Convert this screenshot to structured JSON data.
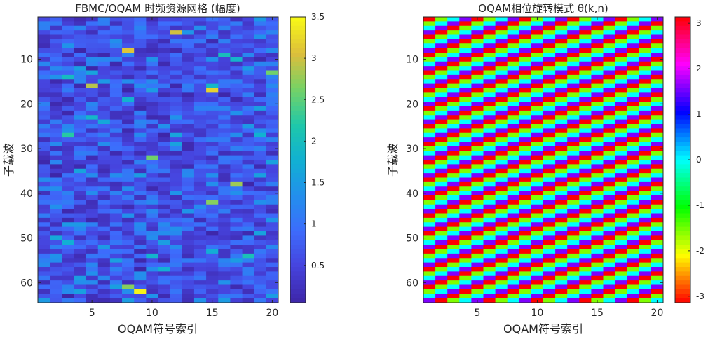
{
  "chart_data": [
    {
      "type": "heatmap",
      "title": "FBMC/OQAM 时频资源网格 (幅度)",
      "xlabel": "OQAM符号索引",
      "ylabel": "子载波",
      "x": {
        "count": 20,
        "range": [
          0.5,
          20.5
        ],
        "ticks": [
          5,
          10,
          15,
          20
        ]
      },
      "y": {
        "count": 64,
        "range": [
          0.5,
          64.5
        ],
        "ticks": [
          10,
          20,
          30,
          40,
          50,
          60
        ],
        "direction": "reverse"
      },
      "values_source": "random amplitudes (no numeric cell labels shown)",
      "colormap": "parula",
      "colorbar": {
        "range": [
          0.05,
          3.5
        ],
        "ticks": [
          "0.5",
          "1",
          "1.5",
          "2",
          "2.5",
          "3",
          "3.5"
        ],
        "tick_values": [
          0.5,
          1,
          1.5,
          2,
          2.5,
          3,
          3.5
        ]
      }
    },
    {
      "type": "heatmap",
      "title": "OQAM相位旋转模式 θ(k,n)",
      "xlabel": "OQAM符号索引",
      "ylabel": "子载波",
      "x": {
        "count": 20,
        "range": [
          0.5,
          20.5
        ],
        "ticks": [
          5,
          10,
          15,
          20
        ]
      },
      "y": {
        "count": 64,
        "range": [
          0.5,
          64.5
        ],
        "ticks": [
          10,
          20,
          30,
          40,
          50,
          60
        ],
        "direction": "reverse"
      },
      "pattern": "theta(k,n) = pi/2 * (k + n) wrapped to [-pi, pi]",
      "colormap": "hsv",
      "colorbar": {
        "range": [
          -3.1416,
          3.1416
        ],
        "ticks": [
          "-3",
          "-2",
          "-1",
          "0",
          "1",
          "2",
          "3"
        ],
        "tick_values": [
          -3,
          -2,
          -1,
          0,
          1,
          2,
          3
        ]
      }
    }
  ]
}
